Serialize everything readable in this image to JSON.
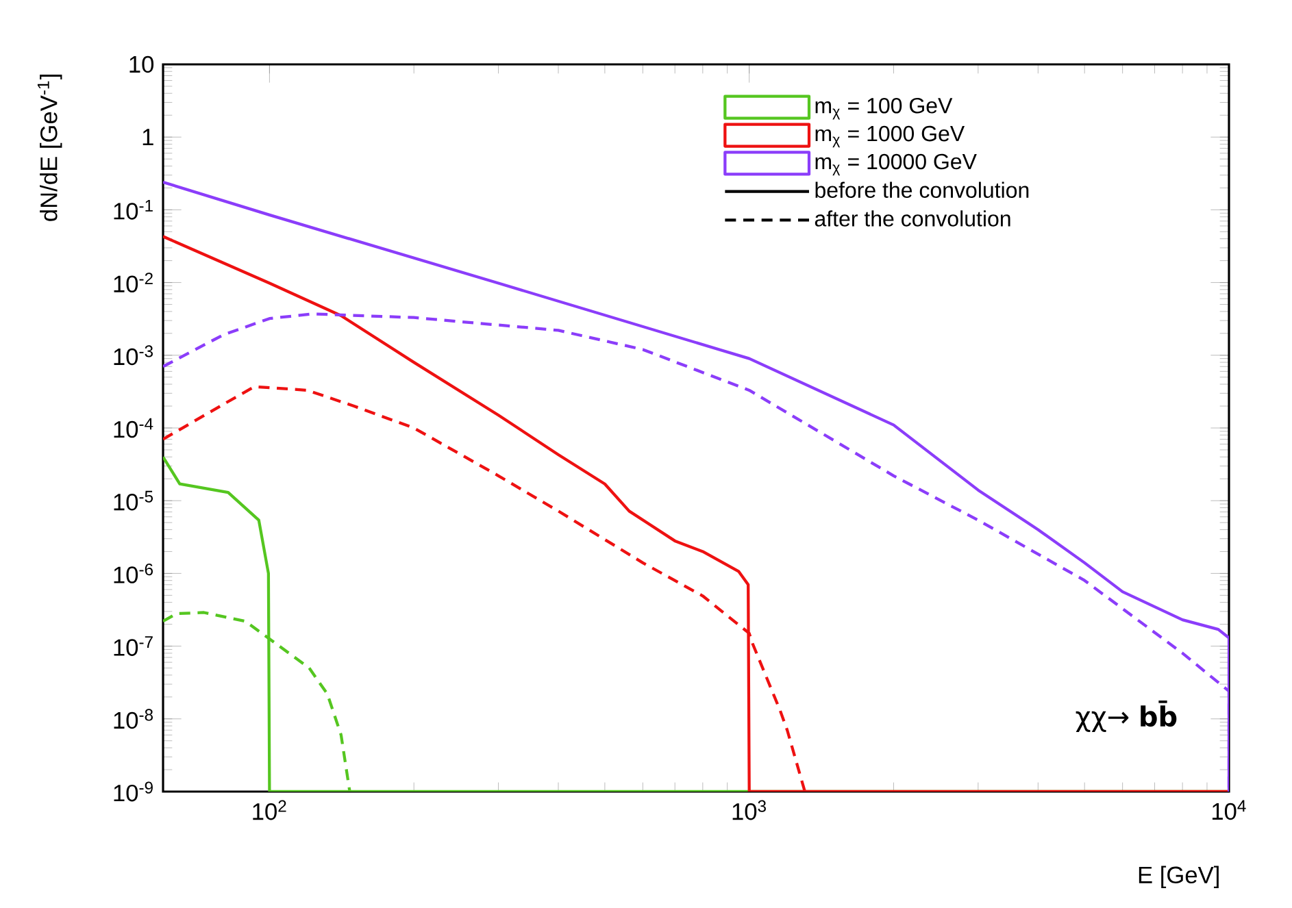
{
  "chart_data": {
    "type": "line",
    "xlabel": "E [GeV]",
    "ylabel": "dN/dE [GeV$^{-1}$]",
    "log": "xy",
    "grid": false,
    "legend": "top right",
    "xlim": [
      60,
      10000
    ],
    "ylim": [
      1e-09,
      10
    ],
    "xticks": [
      {
        "value": 100,
        "label": "10$^{2}$"
      },
      {
        "value": 1000,
        "label": "10$^{3}$"
      },
      {
        "value": 10000,
        "label": "10$^{4}$"
      }
    ],
    "yticks": [
      {
        "value": 1e-09,
        "label": "10$^{-9}$"
      },
      {
        "value": 1e-08,
        "label": "10$^{-8}$"
      },
      {
        "value": 1e-07,
        "label": "10$^{-7}$"
      },
      {
        "value": 1e-06,
        "label": "10$^{-6}$"
      },
      {
        "value": 1e-05,
        "label": "10$^{-5}$"
      },
      {
        "value": 0.0001,
        "label": "10$^{-4}$"
      },
      {
        "value": 0.001,
        "label": "10$^{-3}$"
      },
      {
        "value": 0.01,
        "label": "10$^{-2}$"
      },
      {
        "value": 0.1,
        "label": "10$^{-1}$"
      },
      1,
      10
    ],
    "annotations": [
      "before the convolution",
      "after the convolution",
      "χχ→ **bb̄**"
    ],
    "series": [
      {
        "name": "m$_{χ}$ = 100 GeV",
        "color": "#55c620",
        "line_style": "solid",
        "x": [
          60,
          65,
          82,
          95,
          99.5,
          100,
          10000
        ],
        "values": [
          4e-05,
          1.7e-05,
          1.3e-05,
          5.4e-06,
          1e-06,
          1e-09,
          1e-09
        ]
      },
      {
        "color": "#55c620",
        "line_style": "dashed",
        "x": [
          60,
          64,
          73,
          89,
          101,
          121,
          132,
          141,
          147
        ],
        "values": [
          2.2e-07,
          2.8e-07,
          2.9e-07,
          2.2e-07,
          1.2e-07,
          5e-08,
          2.2e-08,
          6e-09,
          1e-09
        ]
      },
      {
        "name": "m$_{χ}$ = 1000 GeV",
        "color": "#ee1111",
        "line_style": "solid",
        "x": [
          60,
          100,
          141,
          200,
          300,
          400,
          500,
          562,
          700,
          800,
          950,
          995,
          1000,
          10000
        ],
        "values": [
          0.043,
          0.0098,
          0.0035,
          0.0008,
          0.00015,
          4.3e-05,
          1.7e-05,
          7.2e-06,
          2.8e-06,
          2e-06,
          1.07e-06,
          7e-07,
          1e-09,
          1e-09
        ]
      },
      {
        "color": "#ee1111",
        "line_style": "dashed",
        "x": [
          60,
          80,
          93,
          120,
          150,
          200,
          300,
          400,
          600,
          800,
          1000,
          1017,
          1160,
          1200,
          1306
        ],
        "values": [
          7e-05,
          0.00021,
          0.00037,
          0.00033,
          0.0002,
          0.0001,
          2.2e-05,
          7.2e-06,
          1.4e-06,
          4.9e-07,
          1.5e-07,
          1.07e-07,
          1.3e-08,
          7e-09,
          1e-09
        ]
      },
      {
        "name": "m$_{χ}$ = 10000 GeV",
        "color": "#8b3dfa",
        "line_style": "solid",
        "x": [
          60,
          100,
          300,
          1000,
          2000,
          3000,
          4000,
          5000,
          6000,
          8000,
          9500,
          10000,
          10000
        ],
        "values": [
          0.24,
          0.085,
          0.0098,
          0.0009,
          0.00011,
          1.4e-05,
          4e-06,
          1.4e-06,
          5.6e-07,
          2.3e-07,
          1.7e-07,
          1.3e-07,
          1e-09
        ]
      },
      {
        "color": "#8b3dfa",
        "line_style": "dashed",
        "x": [
          60,
          80,
          100,
          123,
          200,
          400,
          600,
          1000,
          2000,
          3000,
          5000,
          8000,
          10000,
          10000
        ],
        "values": [
          0.0007,
          0.0019,
          0.0032,
          0.0037,
          0.0033,
          0.0022,
          0.0012,
          0.00033,
          2.2e-05,
          5.4e-06,
          8e-07,
          8e-08,
          2.4e-08,
          1e-09
        ]
      }
    ]
  }
}
